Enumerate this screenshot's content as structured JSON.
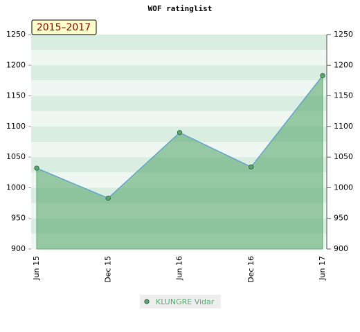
{
  "chart_data": {
    "type": "line",
    "title": "WOF ratinglist",
    "annotation": "2015–2017",
    "categories": [
      "Jun 15",
      "Dec 15",
      "Jun 16",
      "Dec 16",
      "Jun 17"
    ],
    "series": [
      {
        "name": "KLUNGRE Vidar",
        "color": "#5aa870",
        "line_color": "#5b9bd5",
        "values": [
          1032,
          983,
          1090,
          1034,
          1183
        ]
      }
    ],
    "ylim": [
      900,
      1250
    ],
    "yticks": [
      900,
      950,
      1000,
      1050,
      1100,
      1150,
      1200,
      1250
    ],
    "y2lim": [
      900,
      1250
    ],
    "y2ticks": [
      900,
      950,
      1000,
      1050,
      1100,
      1150,
      1200,
      1250
    ],
    "area": true
  }
}
